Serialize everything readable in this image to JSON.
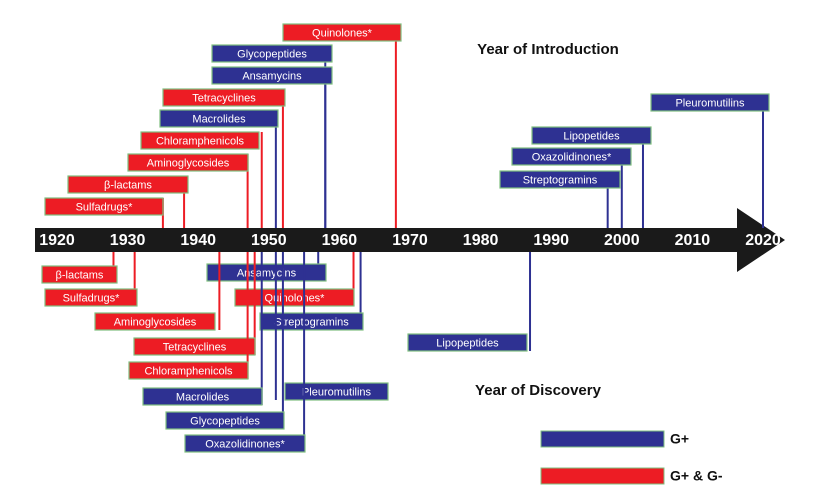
{
  "titles": {
    "introduction": "Year of Introduction",
    "discovery": "Year of Discovery"
  },
  "axis": {
    "xlim": [
      1920,
      2020
    ],
    "xticks": [
      1920,
      1930,
      1940,
      1950,
      1960,
      1970,
      1980,
      1990,
      2000,
      2010,
      2020
    ]
  },
  "legend": [
    {
      "label": "G+",
      "color": "#2e3192"
    },
    {
      "label": "G+ & G-",
      "color": "#ed1c24"
    }
  ],
  "introduction": [
    {
      "label": "Quinolones*",
      "year": 1968,
      "color": "#ed1c24"
    },
    {
      "label": "Glycopeptides",
      "year": 1958,
      "color": "#2e3192"
    },
    {
      "label": "Ansamycins",
      "year": 1958,
      "color": "#2e3192"
    },
    {
      "label": "Tetracyclines",
      "year": 1952,
      "color": "#ed1c24"
    },
    {
      "label": "Macrolides",
      "year": 1951,
      "color": "#2e3192"
    },
    {
      "label": "Chloramphenicols",
      "year": 1949,
      "color": "#ed1c24"
    },
    {
      "label": "Aminoglycosides",
      "year": 1947,
      "color": "#ed1c24"
    },
    {
      "label": "β-lactams",
      "year": 1938,
      "color": "#ed1c24"
    },
    {
      "label": "Sulfadrugs*",
      "year": 1935,
      "color": "#ed1c24"
    },
    {
      "label": "Pleuromutilins",
      "year": 2020,
      "color": "#2e3192"
    },
    {
      "label": "Lipopetides",
      "year": 2003,
      "color": "#2e3192"
    },
    {
      "label": "Oxazolidinones*",
      "year": 2000,
      "color": "#2e3192"
    },
    {
      "label": "Streptogramins",
      "year": 1998,
      "color": "#2e3192"
    }
  ],
  "discovery": [
    {
      "label": "β-lactams",
      "year": 1928,
      "color": "#ed1c24"
    },
    {
      "label": "Sulfadrugs*",
      "year": 1931,
      "color": "#ed1c24"
    },
    {
      "label": "Ansamycins",
      "year": 1957,
      "color": "#2e3192"
    },
    {
      "label": "Quinolones*",
      "year": 1962,
      "color": "#ed1c24"
    },
    {
      "label": "Aminoglycosides",
      "year": 1943,
      "color": "#ed1c24"
    },
    {
      "label": "Streptogramins",
      "year": 1963,
      "color": "#2e3192"
    },
    {
      "label": "Lipopeptides",
      "year": 1987,
      "color": "#2e3192"
    },
    {
      "label": "Tetracyclines",
      "year": 1948,
      "color": "#ed1c24"
    },
    {
      "label": "Chloramphenicols",
      "year": 1947,
      "color": "#ed1c24"
    },
    {
      "label": "Pleuromutilins",
      "year": 1951,
      "color": "#2e3192"
    },
    {
      "label": "Macrolides",
      "year": 1949,
      "color": "#2e3192"
    },
    {
      "label": "Glycopeptides",
      "year": 1952,
      "color": "#2e3192"
    },
    {
      "label": "Oxazolidinones*",
      "year": 1955,
      "color": "#2e3192"
    }
  ]
}
